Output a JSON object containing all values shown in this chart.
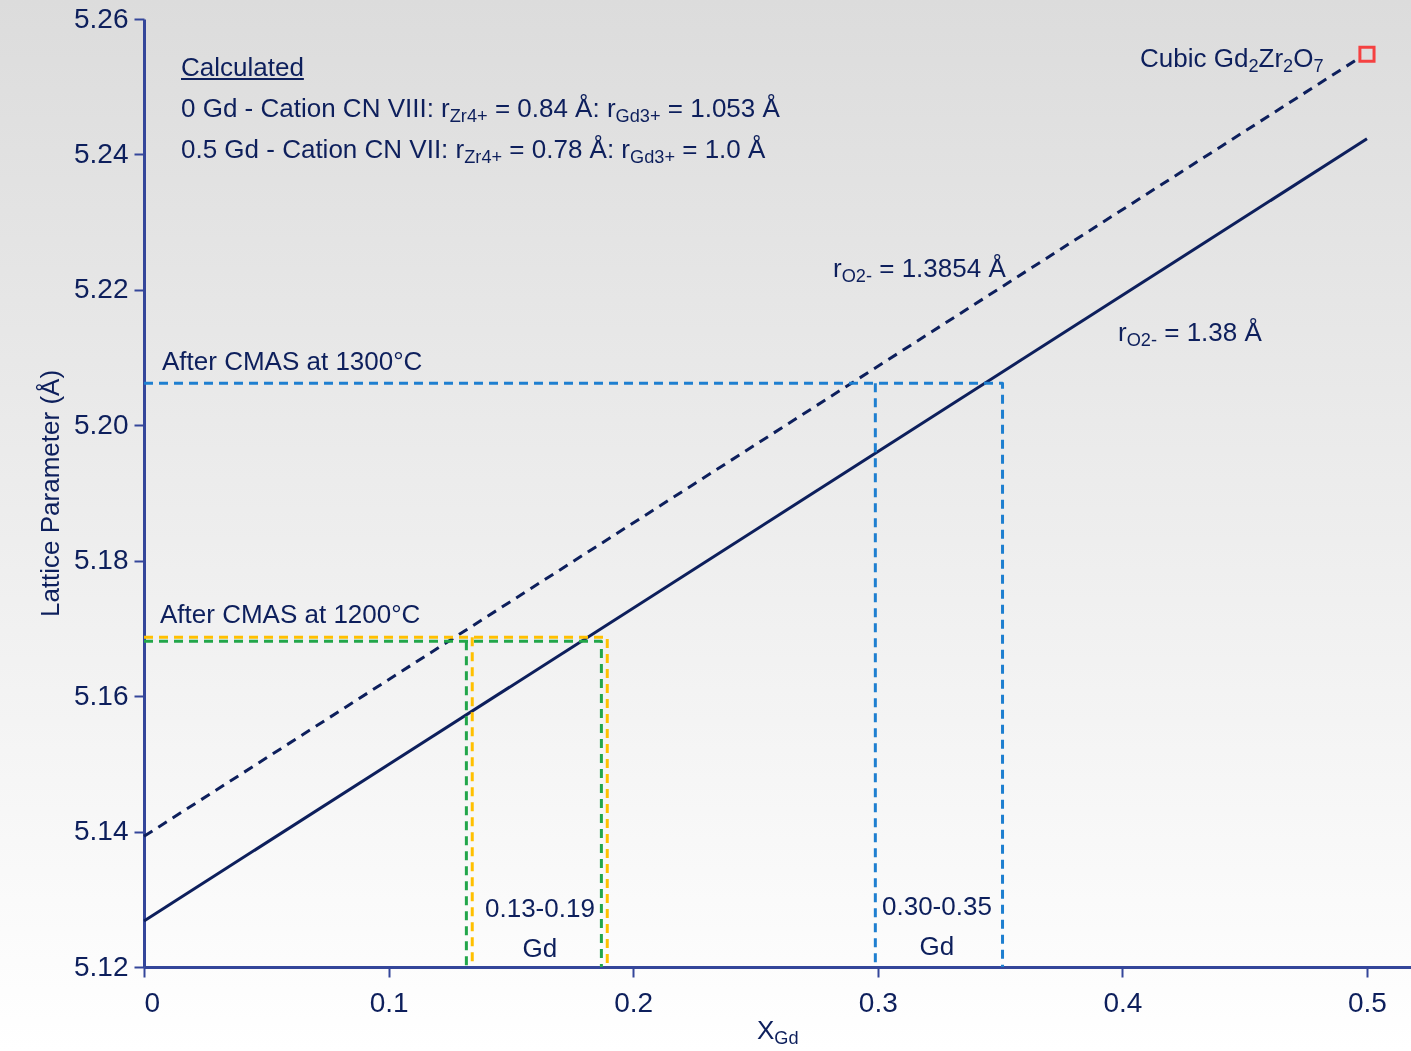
{
  "chart_data": {
    "type": "line",
    "xlabel": "X$_{Gd}$",
    "ylabel": "Lattice Parameter (Å)",
    "xlim": [
      0,
      0.518
    ],
    "xticks": [
      0,
      0.1,
      0.2,
      0.3,
      0.4,
      0.5
    ],
    "ylim": [
      5.12,
      5.26
    ],
    "yticks": [
      {
        "value": 5.12,
        "label": "5.12"
      },
      {
        "value": 5.14,
        "label": "5.14"
      },
      {
        "value": 5.16,
        "label": "5.16"
      },
      {
        "value": 5.18,
        "label": "5.18"
      },
      {
        "value": 5.2,
        "label": "5.20"
      },
      {
        "value": 5.22,
        "label": "5.22"
      },
      {
        "value": 5.24,
        "label": "5.24"
      },
      {
        "value": 5.26,
        "label": "5.26"
      }
    ],
    "grid": false,
    "series": [
      {
        "color": "#0d1f5c",
        "x": [
          0,
          0.5
        ],
        "values": [
          5.1268,
          5.2423
        ],
        "line_style": "solid"
      },
      {
        "color": "#0d1f5c",
        "x": [
          0,
          0.4975
        ],
        "values": [
          5.1393,
          5.2544
        ],
        "line_style": "dashed"
      },
      {
        "type": "scatter",
        "color": "#ff0000",
        "x": [
          0.5
        ],
        "values": [
          5.2548
        ],
        "marker": "square"
      },
      {
        "color": "#1e7fd0",
        "x": [
          0,
          0.351,
          0.351
        ],
        "values": [
          5.2062,
          5.2062,
          5.12
        ],
        "line_style": "dashed"
      },
      {
        "color": "#1e7fd0",
        "x": [
          0.299,
          0.299
        ],
        "values": [
          5.2062,
          5.12
        ],
        "line_style": "dashed"
      },
      {
        "color": "#ffc000",
        "x": [
          0,
          0.1894,
          0.1894
        ],
        "values": [
          5.1687,
          5.1687,
          5.12
        ],
        "line_style": "dashed"
      },
      {
        "color": "#ffc000",
        "x": [
          0.1342,
          0.1342
        ],
        "values": [
          5.1687,
          5.12
        ],
        "line_style": "dashed"
      },
      {
        "color": "#22a64a",
        "x": [
          0,
          0.187,
          0.187
        ],
        "values": [
          5.1681,
          5.1681,
          5.12
        ],
        "line_style": "dashed"
      },
      {
        "color": "#22a64a",
        "x": [
          0.1318,
          0.1318
        ],
        "values": [
          5.1681,
          5.12
        ],
        "line_style": "dashed"
      }
    ],
    "annotations": [
      "Calculated",
      "0 Gd - Cation CN VIII: r$_{Zr4+}$ = 0.84 Å: r$_{Gd3+}$ = 1.053 Å",
      "0.5 Gd - Cation CN VII: r$_{Zr4+}$ = 0.78 Å: r$_{Gd3+}$ = 1.0 Å",
      "Cubic Gd$_{2}$Zr$_{2}$O$_{7}$",
      "r$_{O2-}$ = 1.3854 Å",
      "r$_{O2-}$ = 1.38 Å",
      "After CMAS at 1300°C",
      "After CMAS at 1200°C",
      "0.13-0.19\nGd",
      "0.30-0.35\nGd"
    ]
  }
}
